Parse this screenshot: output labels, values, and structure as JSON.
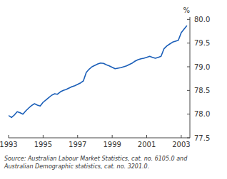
{
  "chart_data": {
    "type": "line",
    "ylabel": "%",
    "source": "Source: Australian Labour Market Statistics, cat. no. 6105.0 and\nAustralian Demographic statistics, cat. no. 3201.0.",
    "color": "#1a5eb8",
    "xlim": [
      1993.0,
      2003.5
    ],
    "ylim": [
      77.5,
      80.05
    ],
    "xticks": [
      1993,
      1995,
      1997,
      1999,
      2001,
      2003
    ],
    "yticks": [
      77.5,
      {
        "value": 78.0,
        "label": "78.0"
      },
      78.5,
      {
        "value": 79.0,
        "label": "79.0"
      },
      79.5,
      {
        "value": 80.0,
        "label": "80.0"
      }
    ],
    "x": [
      1993.0,
      1993.17,
      1993.33,
      1993.5,
      1993.67,
      1993.83,
      1994.0,
      1994.17,
      1994.33,
      1994.5,
      1994.67,
      1994.83,
      1995.0,
      1995.17,
      1995.33,
      1995.5,
      1995.67,
      1995.83,
      1996.0,
      1996.17,
      1996.33,
      1996.5,
      1996.67,
      1996.83,
      1997.0,
      1997.17,
      1997.33,
      1997.5,
      1997.67,
      1997.83,
      1998.0,
      1998.17,
      1998.33,
      1998.5,
      1998.67,
      1998.83,
      1999.0,
      1999.17,
      1999.33,
      1999.5,
      1999.67,
      1999.83,
      2000.0,
      2000.17,
      2000.33,
      2000.5,
      2000.67,
      2000.83,
      2001.0,
      2001.17,
      2001.33,
      2001.5,
      2001.67,
      2001.83,
      2002.0,
      2002.17,
      2002.33,
      2002.5,
      2002.67,
      2002.83,
      2003.0,
      2003.17,
      2003.33
    ],
    "y": [
      77.97,
      77.93,
      77.98,
      78.05,
      78.03,
      78.0,
      78.07,
      78.13,
      78.18,
      78.22,
      78.19,
      78.17,
      78.25,
      78.3,
      78.35,
      78.4,
      78.43,
      78.42,
      78.47,
      78.5,
      78.52,
      78.55,
      78.58,
      78.6,
      78.63,
      78.66,
      78.7,
      78.88,
      78.95,
      79.0,
      79.03,
      79.06,
      79.08,
      79.07,
      79.04,
      79.02,
      78.99,
      78.96,
      78.97,
      78.98,
      79.0,
      79.02,
      79.05,
      79.08,
      79.12,
      79.15,
      79.17,
      79.18,
      79.2,
      79.22,
      79.2,
      79.18,
      79.2,
      79.22,
      79.38,
      79.44,
      79.48,
      79.52,
      79.54,
      79.56,
      79.72,
      79.8,
      79.87
    ]
  }
}
